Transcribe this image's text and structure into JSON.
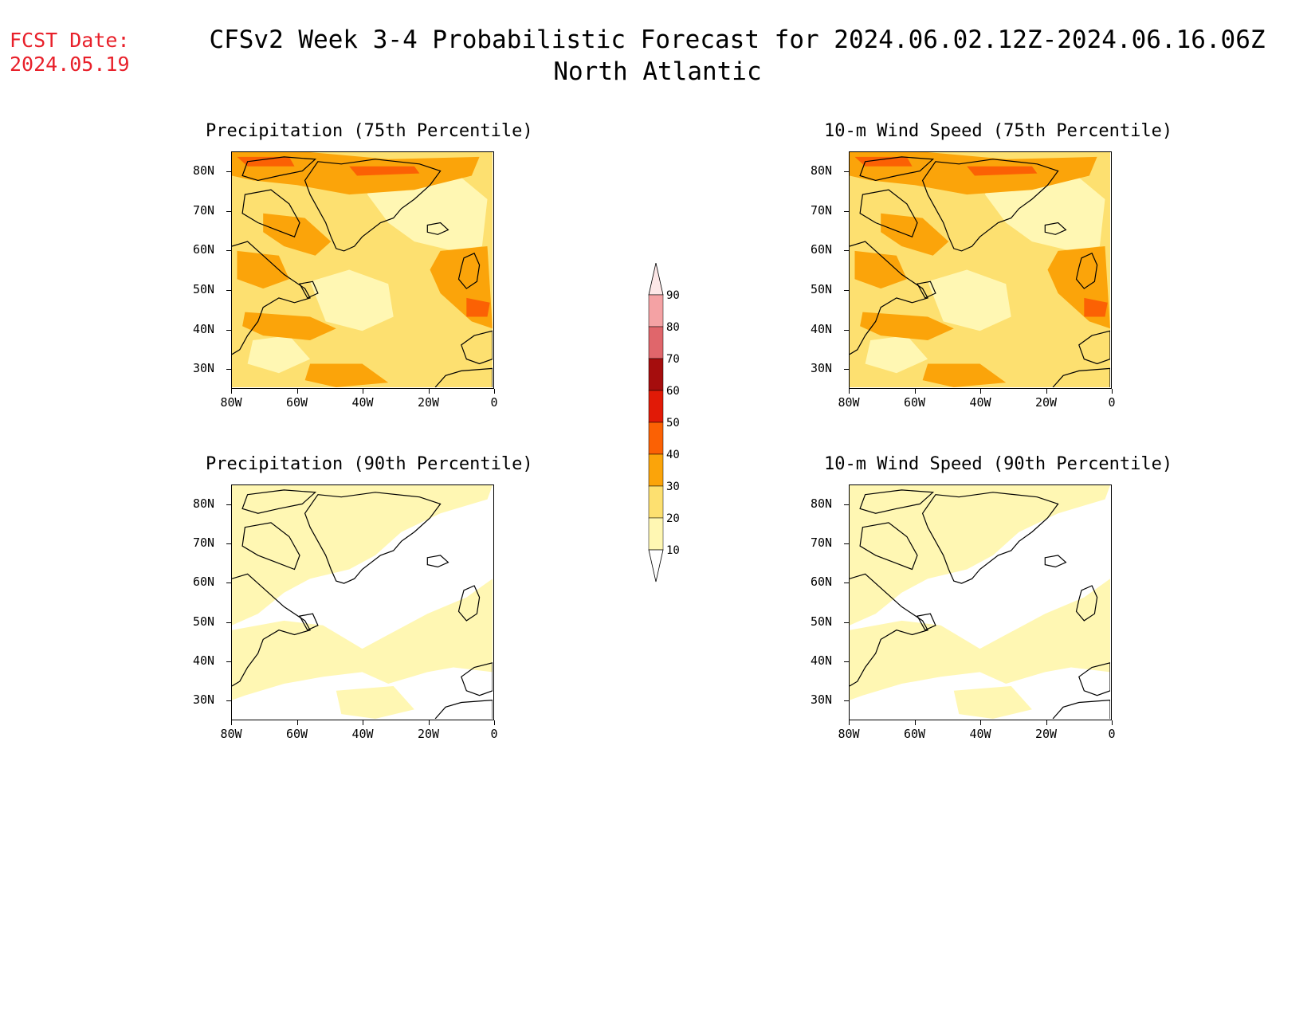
{
  "header": {
    "fcst_label": "FCST Date:",
    "fcst_date": "2024.05.19",
    "title": "CFSv2 Week 3-4 Probabilistic Forecast for 2024.06.02.12Z-2024.06.16.06Z",
    "region": "North Atlantic"
  },
  "panels": [
    {
      "id": "precip75",
      "title": "Precipitation (75th Percentile)",
      "level": "high"
    },
    {
      "id": "wind75",
      "title": "10-m Wind Speed (75th Percentile)",
      "level": "high"
    },
    {
      "id": "precip90",
      "title": "Precipitation (90th Percentile)",
      "level": "low"
    },
    {
      "id": "wind90",
      "title": "10-m Wind Speed (90th Percentile)",
      "level": "low"
    }
  ],
  "axes": {
    "y_ticks": [
      "80N",
      "70N",
      "60N",
      "50N",
      "40N",
      "30N"
    ],
    "x_ticks": [
      "80W",
      "60W",
      "40W",
      "20W",
      "0"
    ],
    "lat_range": [
      25,
      85
    ],
    "lon_range": [
      -80,
      0
    ]
  },
  "colorbar": {
    "labels": [
      "90",
      "80",
      "70",
      "60",
      "50",
      "40",
      "30",
      "20",
      "10"
    ],
    "colors": [
      "#fde7e7",
      "#f4a2a4",
      "#e0666b",
      "#a50d0d",
      "#e11a07",
      "#fb6104",
      "#fba40a",
      "#fde070",
      "#fff7b3"
    ]
  },
  "palette": {
    "c10": "#fff7b3",
    "c20": "#fde070",
    "c30": "#fba40a",
    "c40": "#fb6104",
    "c50": "#e11a07",
    "coast": "#000000"
  }
}
